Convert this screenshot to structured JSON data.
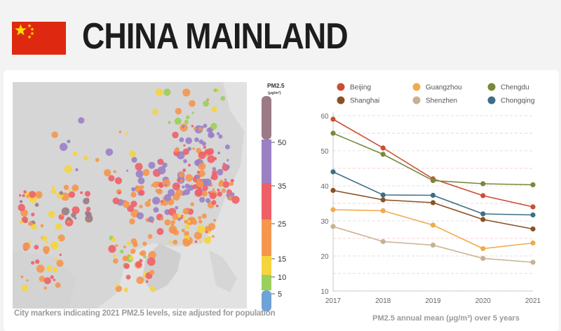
{
  "header": {
    "title": "CHINA MAINLAND",
    "flag": "china-flag",
    "colors": {
      "flag_red": "#de2910",
      "flag_star": "#ffde00"
    }
  },
  "map": {
    "caption": "City markers indicating 2021 PM2.5 levels, size adjusted for population"
  },
  "colorbar": {
    "title": "PM2.5",
    "unit": "(μg/m³)",
    "ticks": [
      "50",
      "35",
      "25",
      "15",
      "10",
      "5"
    ],
    "bands": [
      {
        "range": "50+",
        "color": "#9b7a85"
      },
      {
        "range": "35-50",
        "color": "#9b80c4"
      },
      {
        "range": "25-35",
        "color": "#ef5f68"
      },
      {
        "range": "15-25",
        "color": "#f5964e"
      },
      {
        "range": "10-15",
        "color": "#f6d43e"
      },
      {
        "range": "5-10",
        "color": "#9bcf5b"
      },
      {
        "range": "0-5",
        "color": "#6fa2d6"
      }
    ]
  },
  "chart_data": {
    "type": "line",
    "title": "",
    "xlabel": "PM2.5 annual mean (μg/m³) over 5 years",
    "ylabel": "",
    "x": [
      "2017",
      "2018",
      "2019",
      "2020",
      "2021"
    ],
    "ylim": [
      10,
      60
    ],
    "yticks": [
      "10",
      "20",
      "30",
      "40",
      "50",
      "60"
    ],
    "series": [
      {
        "name": "Beijing",
        "color": "#c94f34",
        "values": [
          59.0,
          50.8,
          42.0,
          37.2,
          34.0
        ]
      },
      {
        "name": "Guangzhou",
        "color": "#f0ab4d",
        "values": [
          33.2,
          32.9,
          28.8,
          22.1,
          23.7
        ]
      },
      {
        "name": "Chengdu",
        "color": "#77893b",
        "values": [
          55.0,
          49.0,
          41.5,
          40.6,
          40.3
        ]
      },
      {
        "name": "Shanghai",
        "color": "#8a5222",
        "values": [
          38.7,
          36.0,
          35.2,
          30.4,
          27.7
        ]
      },
      {
        "name": "Shenzhen",
        "color": "#c8b192",
        "values": [
          28.4,
          24.1,
          23.1,
          19.3,
          18.2
        ]
      },
      {
        "name": "Chongqing",
        "color": "#3e6e85",
        "values": [
          44.0,
          37.4,
          37.3,
          32.0,
          31.7
        ]
      }
    ]
  }
}
